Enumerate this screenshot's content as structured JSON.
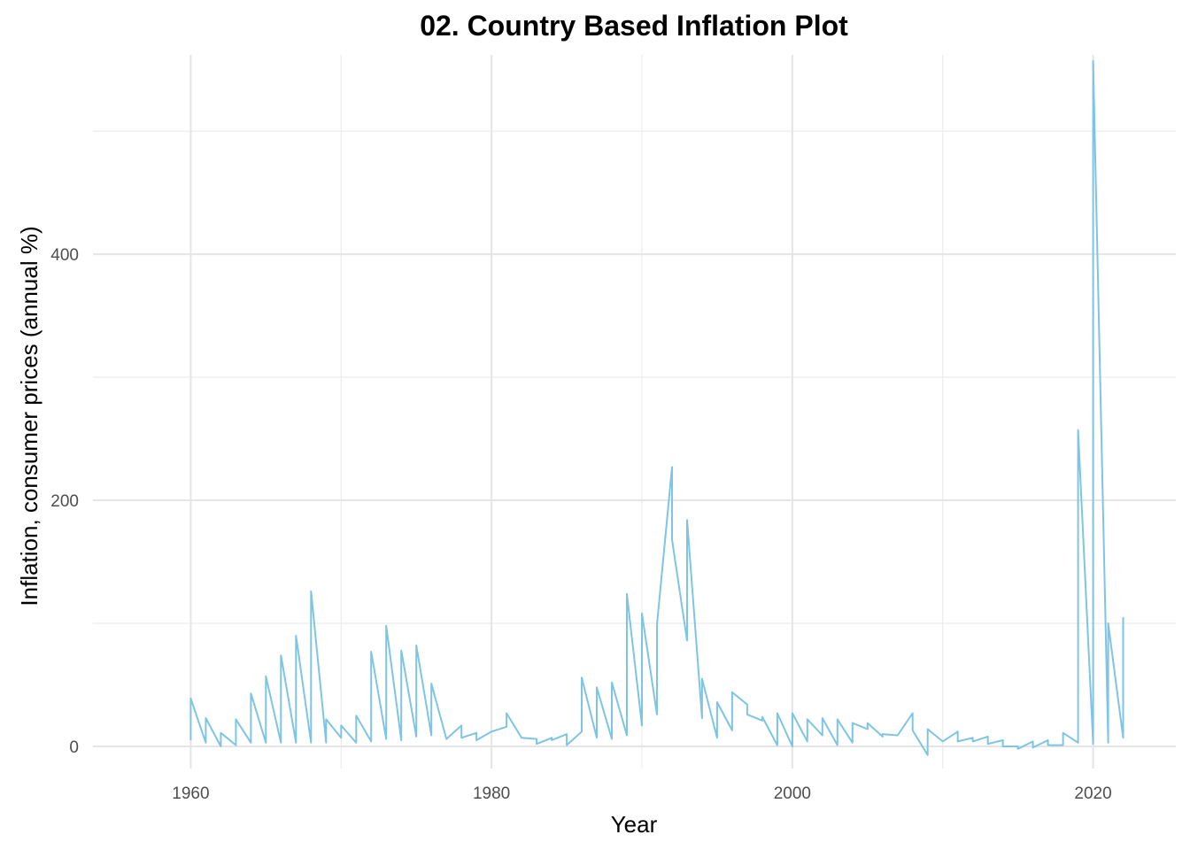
{
  "chart_data": {
    "type": "line",
    "title": "02. Country Based Inflation Plot",
    "xlabel": "Year",
    "ylabel": "Inflation, consumer prices (annual %)",
    "xlim": [
      1953.5,
      2025.5
    ],
    "ylim": [
      -18,
      562
    ],
    "grid": true,
    "legend": "none",
    "x_ticks": [
      1960,
      1980,
      2000,
      2020
    ],
    "x_tick_labels": [
      "1960",
      "1980",
      "2000",
      "2020"
    ],
    "x_minor": [
      1970,
      1990,
      2010
    ],
    "y_ticks": [
      0,
      200,
      400
    ],
    "y_tick_labels": [
      "0",
      "200",
      "400"
    ],
    "y_minor": [
      100,
      300,
      500
    ],
    "series": [
      {
        "color": "#7ec5e4",
        "points": [
          [
            1960,
            5
          ],
          [
            1960,
            39
          ],
          [
            1961,
            3
          ],
          [
            1961,
            23
          ],
          [
            1962,
            0
          ],
          [
            1962,
            11
          ],
          [
            1963,
            1
          ],
          [
            1963,
            22
          ],
          [
            1964,
            3
          ],
          [
            1964,
            43
          ],
          [
            1965,
            3
          ],
          [
            1965,
            57
          ],
          [
            1966,
            3
          ],
          [
            1966,
            74
          ],
          [
            1967,
            3
          ],
          [
            1967,
            90
          ],
          [
            1968,
            3
          ],
          [
            1968,
            126
          ],
          [
            1969,
            3
          ],
          [
            1969,
            22
          ],
          [
            1970,
            7
          ],
          [
            1970,
            17
          ],
          [
            1971,
            3
          ],
          [
            1971,
            25
          ],
          [
            1972,
            4
          ],
          [
            1972,
            77
          ],
          [
            1973,
            6
          ],
          [
            1973,
            98
          ],
          [
            1974,
            5
          ],
          [
            1974,
            78
          ],
          [
            1975,
            8
          ],
          [
            1975,
            82
          ],
          [
            1976,
            9
          ],
          [
            1976,
            51
          ],
          [
            1977,
            6
          ],
          [
            1978,
            17
          ],
          [
            1978,
            7
          ],
          [
            1979,
            11
          ],
          [
            1979,
            5
          ],
          [
            1980,
            12
          ],
          [
            1981,
            16
          ],
          [
            1981,
            27
          ],
          [
            1982,
            7
          ],
          [
            1983,
            6
          ],
          [
            1983,
            2
          ],
          [
            1984,
            7
          ],
          [
            1984,
            5
          ],
          [
            1985,
            10
          ],
          [
            1985,
            1
          ],
          [
            1986,
            12
          ],
          [
            1986,
            56
          ],
          [
            1987,
            7
          ],
          [
            1987,
            48
          ],
          [
            1988,
            6
          ],
          [
            1988,
            52
          ],
          [
            1989,
            9
          ],
          [
            1989,
            124
          ],
          [
            1990,
            17
          ],
          [
            1990,
            108
          ],
          [
            1991,
            26
          ],
          [
            1991,
            99
          ],
          [
            1992,
            227
          ],
          [
            1992,
            168
          ],
          [
            1993,
            86
          ],
          [
            1993,
            184
          ],
          [
            1994,
            23
          ],
          [
            1994,
            55
          ],
          [
            1995,
            7
          ],
          [
            1995,
            36
          ],
          [
            1996,
            13
          ],
          [
            1996,
            44
          ],
          [
            1997,
            34
          ],
          [
            1997,
            26
          ],
          [
            1998,
            21
          ],
          [
            1998,
            24
          ],
          [
            1999,
            1
          ],
          [
            1999,
            27
          ],
          [
            2000,
            0
          ],
          [
            2000,
            27
          ],
          [
            2001,
            4
          ],
          [
            2001,
            22
          ],
          [
            2002,
            9
          ],
          [
            2002,
            23
          ],
          [
            2003,
            1
          ],
          [
            2003,
            22
          ],
          [
            2004,
            3
          ],
          [
            2004,
            19
          ],
          [
            2005,
            14
          ],
          [
            2005,
            19
          ],
          [
            2006,
            8
          ],
          [
            2006,
            10
          ],
          [
            2007,
            9
          ],
          [
            2008,
            27
          ],
          [
            2008,
            13
          ],
          [
            2009,
            -7
          ],
          [
            2009,
            14
          ],
          [
            2010,
            4
          ],
          [
            2011,
            12
          ],
          [
            2011,
            4
          ],
          [
            2012,
            7
          ],
          [
            2012,
            4
          ],
          [
            2013,
            8
          ],
          [
            2013,
            2
          ],
          [
            2014,
            5
          ],
          [
            2014,
            0
          ],
          [
            2015,
            0
          ],
          [
            2015,
            -2
          ],
          [
            2016,
            4
          ],
          [
            2016,
            -1
          ],
          [
            2017,
            5
          ],
          [
            2017,
            1
          ],
          [
            2018,
            1
          ],
          [
            2018,
            11
          ],
          [
            2019,
            3
          ],
          [
            2019,
            257
          ],
          [
            2020,
            2
          ],
          [
            2020,
            557
          ],
          [
            2021,
            3
          ],
          [
            2021,
            100
          ],
          [
            2022,
            7
          ],
          [
            2022,
            105
          ]
        ]
      }
    ]
  }
}
